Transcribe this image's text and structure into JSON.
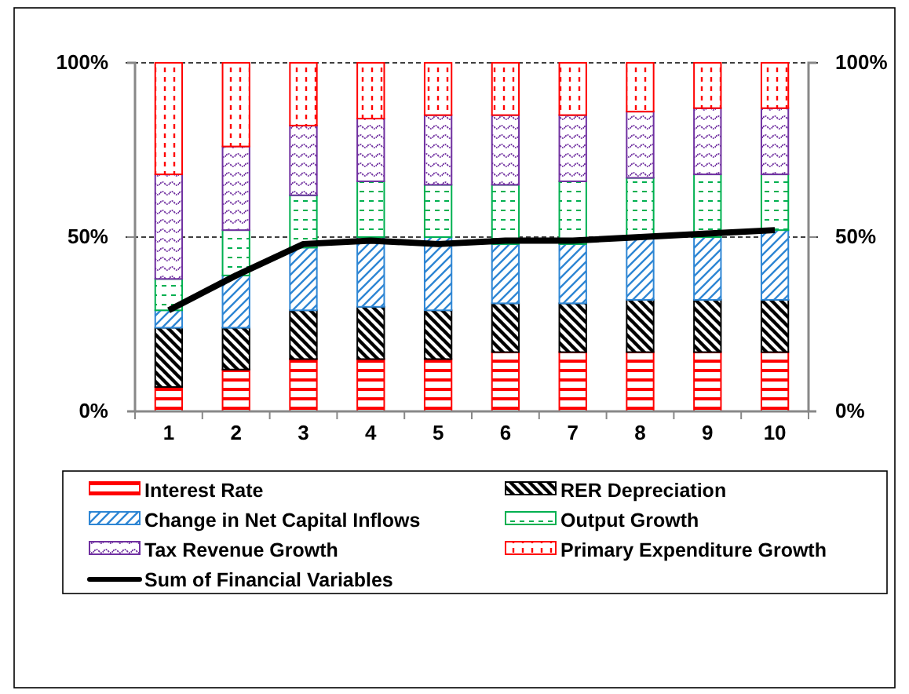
{
  "chart_data": {
    "type": "bar",
    "stacked": true,
    "categories": [
      "1",
      "2",
      "3",
      "4",
      "5",
      "6",
      "7",
      "8",
      "9",
      "10"
    ],
    "series": [
      {
        "name": "Interest Rate",
        "color": "#ff0000",
        "values": [
          7,
          12,
          15,
          15,
          15,
          17,
          17,
          17,
          17,
          17
        ]
      },
      {
        "name": "RER Depreciation",
        "color": "#000000",
        "values": [
          17,
          12,
          14,
          15,
          14,
          14,
          14,
          15,
          15,
          15
        ]
      },
      {
        "name": "Change in Net Capital Inflows",
        "color": "#2e86d4",
        "values": [
          5,
          15,
          18,
          20,
          21,
          17,
          17,
          18,
          18,
          20
        ]
      },
      {
        "name": "Output Growth",
        "color": "#00b050",
        "values": [
          9,
          13,
          15,
          16,
          15,
          17,
          18,
          17,
          18,
          16
        ]
      },
      {
        "name": "Tax Revenue Growth",
        "color": "#7030a0",
        "values": [
          30,
          24,
          20,
          18,
          20,
          20,
          19,
          19,
          19,
          19
        ]
      },
      {
        "name": "Primary Expenditure Growth",
        "color": "#ff0000",
        "values": [
          32,
          24,
          18,
          16,
          15,
          15,
          15,
          14,
          13,
          13
        ]
      },
      {
        "name": "Sum of Financial Variables",
        "type": "line",
        "color": "#000000",
        "values": [
          29,
          39,
          48,
          49,
          48,
          49,
          49,
          50,
          51,
          52
        ]
      }
    ],
    "ylim": [
      0,
      100
    ],
    "yticks": [
      {
        "value": 0,
        "label": "0%"
      },
      {
        "value": 50,
        "label": "50%"
      },
      {
        "value": 100,
        "label": "100%"
      }
    ],
    "y2lim": [
      0,
      100
    ],
    "y2ticks": [
      {
        "value": 0,
        "label": "0%"
      },
      {
        "value": 50,
        "label": "50%"
      },
      {
        "value": 100,
        "label": "100%"
      }
    ],
    "grid": "y",
    "legend": "bottom",
    "line_style": "solid"
  }
}
